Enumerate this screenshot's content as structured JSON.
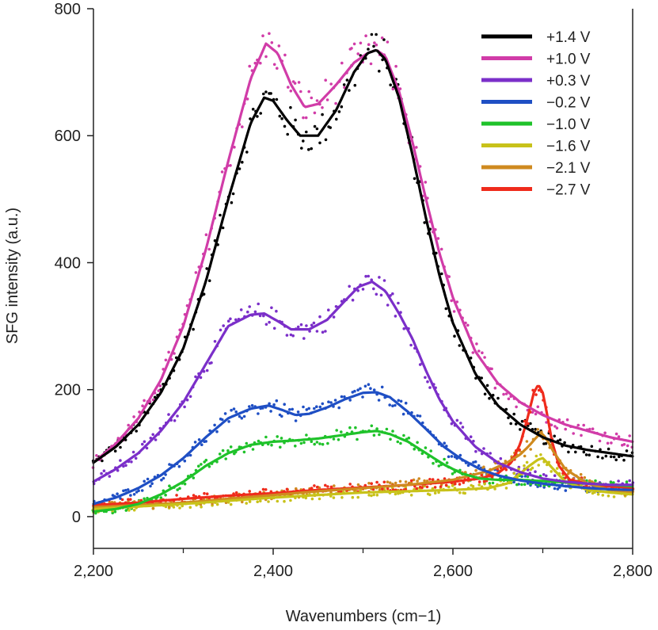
{
  "chart_data": {
    "type": "line",
    "title": "",
    "xlabel": "Wavenumbers (cm−1)",
    "ylabel": "SFG intensity (a.u.)",
    "xlim": [
      2200,
      2800
    ],
    "ylim": [
      -50,
      800
    ],
    "x_ticks": [
      2200,
      2400,
      2600,
      2800
    ],
    "x_tick_labels": [
      "2,200",
      "2,400",
      "2,600",
      "2,800"
    ],
    "x_minor_ticks": [
      2300,
      2500,
      2700
    ],
    "y_ticks": [
      0,
      200,
      400,
      600,
      800
    ],
    "y_tick_labels": [
      "0",
      "200",
      "400",
      "600",
      "800"
    ],
    "grid": false,
    "legend_position": "top-right",
    "series": [
      {
        "name": "+1.4 V",
        "color": "#000000",
        "x": [
          2200,
          2225,
          2250,
          2275,
          2300,
          2325,
          2350,
          2375,
          2390,
          2400,
          2415,
          2430,
          2450,
          2470,
          2490,
          2505,
          2515,
          2525,
          2540,
          2555,
          2570,
          2585,
          2600,
          2625,
          2650,
          2675,
          2700,
          2725,
          2750,
          2775,
          2800
        ],
        "y": [
          85,
          110,
          145,
          195,
          265,
          370,
          500,
          620,
          660,
          655,
          625,
          600,
          600,
          640,
          700,
          730,
          735,
          720,
          660,
          570,
          470,
          380,
          305,
          225,
          175,
          145,
          125,
          112,
          105,
          100,
          95
        ]
      },
      {
        "name": "+1.0 V",
        "color": "#d13ca8",
        "x": [
          2200,
          2225,
          2250,
          2275,
          2300,
          2325,
          2350,
          2375,
          2392,
          2405,
          2420,
          2435,
          2450,
          2470,
          2490,
          2505,
          2515,
          2525,
          2540,
          2555,
          2570,
          2585,
          2600,
          2625,
          2650,
          2675,
          2700,
          2725,
          2750,
          2775,
          2800
        ],
        "y": [
          85,
          115,
          155,
          215,
          300,
          420,
          560,
          690,
          745,
          730,
          680,
          645,
          650,
          680,
          715,
          730,
          735,
          725,
          670,
          590,
          500,
          415,
          345,
          260,
          210,
          180,
          160,
          145,
          135,
          125,
          118
        ]
      },
      {
        "name": "+0.3 V",
        "color": "#7b2fc9",
        "x": [
          2200,
          2225,
          2250,
          2275,
          2300,
          2325,
          2350,
          2375,
          2390,
          2405,
          2420,
          2440,
          2460,
          2480,
          2495,
          2510,
          2525,
          2540,
          2555,
          2570,
          2585,
          2600,
          2625,
          2650,
          2675,
          2700,
          2725,
          2750,
          2775,
          2800
        ],
        "y": [
          55,
          75,
          100,
          135,
          180,
          240,
          300,
          318,
          320,
          308,
          295,
          295,
          310,
          340,
          362,
          370,
          355,
          320,
          280,
          230,
          185,
          150,
          110,
          85,
          70,
          60,
          55,
          52,
          50,
          50
        ]
      },
      {
        "name": "−0.2 V",
        "color": "#1f4fc4",
        "x": [
          2200,
          2225,
          2250,
          2275,
          2300,
          2325,
          2350,
          2375,
          2395,
          2410,
          2425,
          2440,
          2460,
          2480,
          2500,
          2515,
          2530,
          2550,
          2570,
          2590,
          2610,
          2630,
          2650,
          2675,
          2700,
          2725,
          2750,
          2775,
          2800
        ],
        "y": [
          20,
          30,
          45,
          65,
          92,
          125,
          155,
          170,
          175,
          168,
          160,
          162,
          172,
          185,
          195,
          196,
          188,
          165,
          138,
          110,
          90,
          75,
          65,
          57,
          52,
          48,
          45,
          43,
          42
        ]
      },
      {
        "name": "−1.0 V",
        "color": "#1fc22a",
        "x": [
          2200,
          2225,
          2250,
          2275,
          2300,
          2325,
          2350,
          2375,
          2400,
          2425,
          2450,
          2475,
          2500,
          2515,
          2530,
          2550,
          2570,
          2590,
          2610,
          2630,
          2650,
          2675,
          2700,
          2725,
          2750,
          2775,
          2800
        ],
        "y": [
          8,
          12,
          20,
          35,
          55,
          80,
          100,
          113,
          118,
          120,
          123,
          128,
          133,
          135,
          130,
          118,
          100,
          82,
          68,
          60,
          58,
          58,
          56,
          54,
          52,
          50,
          48
        ]
      },
      {
        "name": "−1.6 V",
        "color": "#c8c21a",
        "x": [
          2200,
          2250,
          2300,
          2350,
          2400,
          2450,
          2500,
          2550,
          2600,
          2640,
          2660,
          2675,
          2685,
          2695,
          2700,
          2705,
          2715,
          2725,
          2750,
          2775,
          2800
        ],
        "y": [
          12,
          16,
          20,
          25,
          30,
          34,
          38,
          40,
          42,
          45,
          52,
          68,
          80,
          90,
          92,
          85,
          70,
          55,
          42,
          38,
          35
        ]
      },
      {
        "name": "−2.1 V",
        "color": "#cf8a1f",
        "x": [
          2200,
          2250,
          2300,
          2350,
          2400,
          2450,
          2500,
          2550,
          2600,
          2640,
          2660,
          2675,
          2685,
          2693,
          2698,
          2703,
          2712,
          2725,
          2750,
          2775,
          2800
        ],
        "y": [
          15,
          18,
          22,
          28,
          34,
          40,
          45,
          50,
          58,
          72,
          85,
          98,
          112,
          125,
          132,
          125,
          102,
          75,
          52,
          42,
          38
        ]
      },
      {
        "name": "−2.7 V",
        "color": "#ef2b1c",
        "x": [
          2200,
          2250,
          2300,
          2350,
          2400,
          2450,
          2500,
          2550,
          2600,
          2630,
          2650,
          2665,
          2675,
          2683,
          2690,
          2695,
          2700,
          2705,
          2710,
          2718,
          2730,
          2750,
          2775,
          2800
        ],
        "y": [
          18,
          22,
          28,
          33,
          37,
          42,
          46,
          50,
          55,
          60,
          68,
          85,
          115,
          155,
          195,
          208,
          195,
          160,
          120,
          80,
          58,
          52,
          48,
          45
        ]
      }
    ]
  }
}
